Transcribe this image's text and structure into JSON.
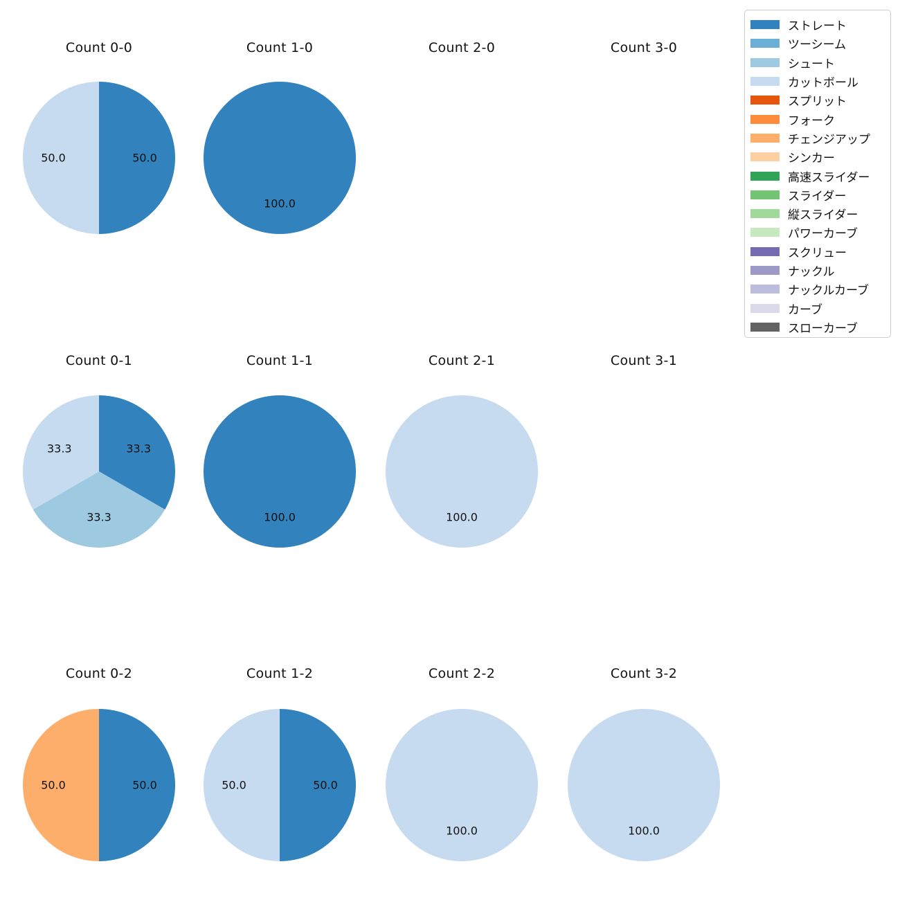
{
  "figure": {
    "background": "#ffffff",
    "text_color": "#111111"
  },
  "legend": {
    "position": "top-right",
    "entries": [
      {
        "label": "ストレート",
        "color": "#3182bd"
      },
      {
        "label": "ツーシーム",
        "color": "#6baed6"
      },
      {
        "label": "シュート",
        "color": "#9ecae1"
      },
      {
        "label": "カットボール",
        "color": "#c6dbef"
      },
      {
        "label": "スプリット",
        "color": "#e6550d"
      },
      {
        "label": "フォーク",
        "color": "#fd8d3c"
      },
      {
        "label": "チェンジアップ",
        "color": "#fdae6b"
      },
      {
        "label": "シンカー",
        "color": "#fdd0a2"
      },
      {
        "label": "高速スライダー",
        "color": "#31a354"
      },
      {
        "label": "スライダー",
        "color": "#74c476"
      },
      {
        "label": "縦スライダー",
        "color": "#a1d99b"
      },
      {
        "label": "パワーカーブ",
        "color": "#c7e9c0"
      },
      {
        "label": "スクリュー",
        "color": "#756bb1"
      },
      {
        "label": "ナックル",
        "color": "#9e9ac8"
      },
      {
        "label": "ナックルカーブ",
        "color": "#bcbddc"
      },
      {
        "label": "カーブ",
        "color": "#dadaeb"
      },
      {
        "label": "スローカーブ",
        "color": "#636363"
      }
    ]
  },
  "chart_data": [
    {
      "type": "pie",
      "title": "Count 0-0",
      "row": 0,
      "col": 0,
      "start_angle": 90,
      "direction": "clockwise",
      "slices": [
        {
          "label": "ストレート",
          "value": 50.0
        },
        {
          "label": "カットボール",
          "value": 50.0
        }
      ]
    },
    {
      "type": "pie",
      "title": "Count 1-0",
      "row": 0,
      "col": 1,
      "start_angle": 90,
      "direction": "clockwise",
      "slices": [
        {
          "label": "ストレート",
          "value": 100.0
        }
      ]
    },
    {
      "type": "pie",
      "title": "Count 2-0",
      "row": 0,
      "col": 2,
      "start_angle": 90,
      "direction": "clockwise",
      "slices": []
    },
    {
      "type": "pie",
      "title": "Count 3-0",
      "row": 0,
      "col": 3,
      "start_angle": 90,
      "direction": "clockwise",
      "slices": []
    },
    {
      "type": "pie",
      "title": "Count 0-1",
      "row": 1,
      "col": 0,
      "start_angle": 90,
      "direction": "clockwise",
      "slices": [
        {
          "label": "ストレート",
          "value": 33.3
        },
        {
          "label": "シュート",
          "value": 33.3
        },
        {
          "label": "カットボール",
          "value": 33.3
        }
      ]
    },
    {
      "type": "pie",
      "title": "Count 1-1",
      "row": 1,
      "col": 1,
      "start_angle": 90,
      "direction": "clockwise",
      "slices": [
        {
          "label": "ストレート",
          "value": 100.0
        }
      ]
    },
    {
      "type": "pie",
      "title": "Count 2-1",
      "row": 1,
      "col": 2,
      "start_angle": 90,
      "direction": "clockwise",
      "slices": [
        {
          "label": "カットボール",
          "value": 100.0
        }
      ]
    },
    {
      "type": "pie",
      "title": "Count 3-1",
      "row": 1,
      "col": 3,
      "start_angle": 90,
      "direction": "clockwise",
      "slices": []
    },
    {
      "type": "pie",
      "title": "Count 0-2",
      "row": 2,
      "col": 0,
      "start_angle": 90,
      "direction": "clockwise",
      "slices": [
        {
          "label": "ストレート",
          "value": 50.0
        },
        {
          "label": "チェンジアップ",
          "value": 50.0
        }
      ]
    },
    {
      "type": "pie",
      "title": "Count 1-2",
      "row": 2,
      "col": 1,
      "start_angle": 90,
      "direction": "clockwise",
      "slices": [
        {
          "label": "ストレート",
          "value": 50.0
        },
        {
          "label": "カットボール",
          "value": 50.0
        }
      ]
    },
    {
      "type": "pie",
      "title": "Count 2-2",
      "row": 2,
      "col": 2,
      "start_angle": 90,
      "direction": "clockwise",
      "slices": [
        {
          "label": "カットボール",
          "value": 100.0
        }
      ]
    },
    {
      "type": "pie",
      "title": "Count 3-2",
      "row": 2,
      "col": 3,
      "start_angle": 90,
      "direction": "clockwise",
      "slices": [
        {
          "label": "カットボール",
          "value": 100.0
        }
      ]
    }
  ]
}
